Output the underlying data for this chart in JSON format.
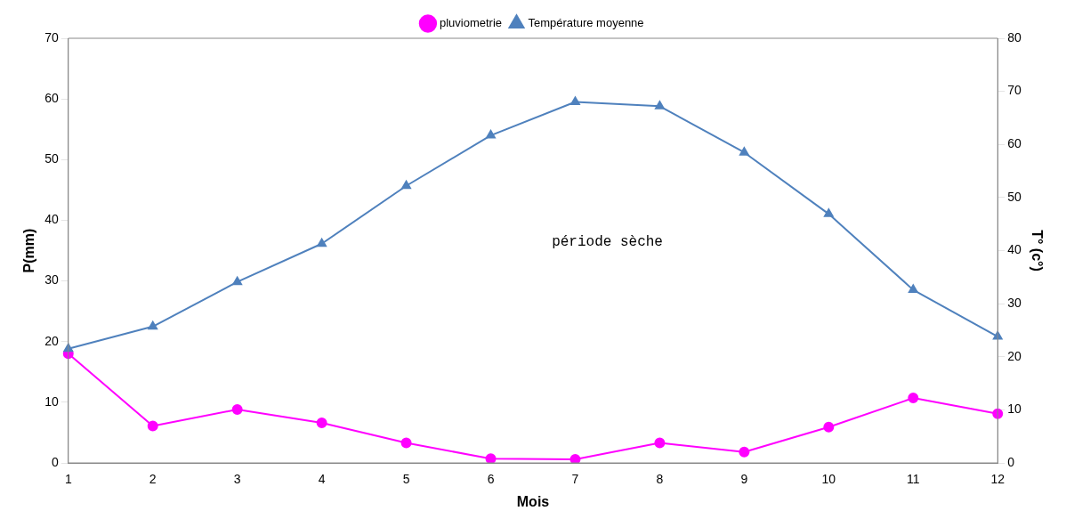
{
  "chart_data": {
    "type": "line",
    "xlabel": "Mois",
    "ylabel": "P(mm)",
    "y2label": "T° (c°)",
    "categories": [
      "1",
      "2",
      "3",
      "4",
      "5",
      "6",
      "7",
      "8",
      "9",
      "10",
      "11",
      "12"
    ],
    "series": [
      {
        "name": "pluviometrie",
        "color": "#ff00ff",
        "marker": "circle",
        "values": [
          18,
          6.1,
          8.8,
          6.6,
          3.3,
          0.7,
          0.6,
          3.3,
          1.8,
          5.9,
          10.7,
          8.1
        ]
      },
      {
        "name": "Température moyenne",
        "color": "#4f81bd",
        "marker": "triangle",
        "axis": "y2",
        "values": [
          21.5,
          25.7,
          34.1,
          41.3,
          52.2,
          61.7,
          68,
          67.2,
          58.5,
          46.9,
          32.6,
          23.8
        ]
      }
    ],
    "ylim": [
      0,
      70
    ],
    "yticks": [
      0,
      10,
      20,
      30,
      40,
      50,
      60,
      70
    ],
    "y2lim": [
      0,
      80
    ],
    "y2ticks": [
      0,
      10,
      20,
      30,
      40,
      50,
      60,
      70,
      80
    ],
    "grid": false,
    "legend": "top",
    "annotations": [
      "période sèche"
    ]
  }
}
